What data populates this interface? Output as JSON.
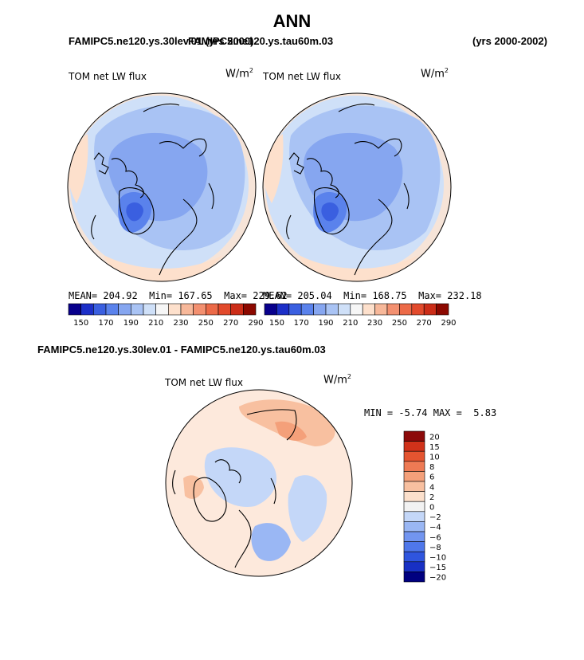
{
  "title": "ANN",
  "case_left": "FAMIPC5.ne120.ys.30lev.01 (yrs 2000)",
  "case_right": "FAMIPC5.ne120.ys.tau60m.03",
  "years": "(yrs 2000-2002)",
  "diff_title": "FAMIPC5.ne120.ys.30lev.01 - FAMIPC5.ne120.ys.tau60m.03",
  "colors": {
    "land_outline": "#000000",
    "palette_abs": [
      "#08008c",
      "#1c2fc8",
      "#3a5fe0",
      "#5a82ec",
      "#86a6f0",
      "#a9c3f4",
      "#cfe0f8",
      "#f6f6f6",
      "#fde0cc",
      "#f7b89a",
      "#f39070",
      "#ec6a48",
      "#e24a2c",
      "#cc2d18",
      "#8c0800"
    ],
    "palette_diff": [
      "#000080",
      "#1830c4",
      "#2f55de",
      "#4f77ea",
      "#7295f0",
      "#9ab7f4",
      "#c4d7f8",
      "#f2f2f2",
      "#fce0cc",
      "#f8c0a0",
      "#f4a07a",
      "#ee7a54",
      "#e45430",
      "#d0321a",
      "#8c0a0a"
    ]
  },
  "chart_data": [
    {
      "type": "polar-map",
      "panel": "model-1",
      "variable": "TOM net LW flux",
      "units": "W/m",
      "units_exp": "2",
      "stats": {
        "mean_label": "MEAN=",
        "mean": "204.92",
        "min_label": "Min=",
        "min": "167.65",
        "max_label": "Max=",
        "max": "229.62"
      },
      "colorbar_ticks": [
        "150",
        "170",
        "190",
        "210",
        "230",
        "250",
        "270",
        "290"
      ],
      "colorbar_levels": 15,
      "regions": [
        {
          "region": "outer-ring",
          "value": 210
        },
        {
          "region": "central-arctic",
          "value": 195
        },
        {
          "region": "greenland",
          "value": 170
        },
        {
          "region": "north-atlantic-edge",
          "value": 225
        }
      ]
    },
    {
      "type": "polar-map",
      "panel": "model-2",
      "variable": "TOM net LW flux",
      "units": "W/m",
      "units_exp": "2",
      "stats": {
        "mean_label": "MEAN=",
        "mean": "205.04",
        "min_label": "Min=",
        "min": "168.75",
        "max_label": "Max=",
        "max": "232.18"
      },
      "colorbar_ticks": [
        "150",
        "170",
        "190",
        "210",
        "230",
        "250",
        "270",
        "290"
      ],
      "colorbar_levels": 15,
      "regions": [
        {
          "region": "outer-ring",
          "value": 210
        },
        {
          "region": "central-arctic",
          "value": 195
        },
        {
          "region": "greenland",
          "value": 170
        },
        {
          "region": "north-atlantic-edge",
          "value": 228
        }
      ]
    },
    {
      "type": "polar-map",
      "panel": "difference",
      "variable": "TOM net LW flux",
      "units": "W/m",
      "units_exp": "2",
      "stats": {
        "min_label": "MIN =",
        "min": "-5.74",
        "max_label": "MAX =",
        "max": "5.83"
      },
      "colorbar_ticks": [
        "20",
        "15",
        "10",
        "8",
        "6",
        "4",
        "2",
        "0",
        "−2",
        "−4",
        "−6",
        "−8",
        "−10",
        "−15",
        "−20"
      ],
      "colorbar_levels": 15,
      "regions": [
        {
          "region": "background",
          "value": 1
        },
        {
          "region": "pacific-sector",
          "value": 4
        },
        {
          "region": "central-arctic",
          "value": -2
        },
        {
          "region": "atlantic-sector",
          "value": -3
        }
      ]
    }
  ]
}
